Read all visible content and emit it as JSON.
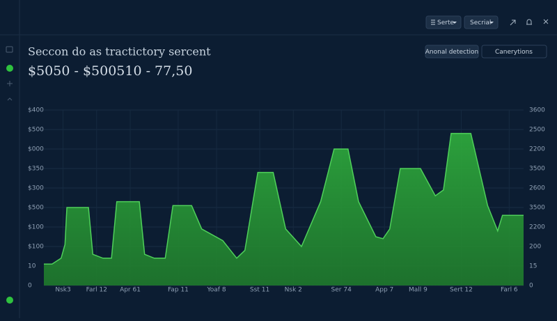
{
  "toolbar": {
    "series_button": "Serte",
    "period_button": "Secrial"
  },
  "header": {
    "title": "Seccon do as tractictory sercent",
    "subtitle": "$5050 - $500510 - 77,50",
    "buttons": [
      "Anonal detection",
      "Canerytions"
    ]
  },
  "chart_data": {
    "type": "area",
    "color": "#2f9e3a",
    "line_color": "#4fd05a",
    "grid": true,
    "xlim": [
      0,
      100
    ],
    "xticks": [
      {
        "value": 4,
        "label": "Nsk3"
      },
      {
        "value": 11,
        "label": "Farl 12"
      },
      {
        "value": 18,
        "label": "Apr 61"
      },
      {
        "value": 28,
        "label": "Fap 11"
      },
      {
        "value": 36,
        "label": "Yoaf 8"
      },
      {
        "value": 45,
        "label": "Sst 11"
      },
      {
        "value": 52,
        "label": "Nsk 2"
      },
      {
        "value": 62,
        "label": "Ser 74"
      },
      {
        "value": 71,
        "label": "App 7"
      },
      {
        "value": 78,
        "label": "Mall 9"
      },
      {
        "value": 87,
        "label": "Sert 12"
      },
      {
        "value": 97,
        "label": "Farl 6"
      }
    ],
    "ylim": [
      0,
      9
    ],
    "yticks": [
      {
        "value": 0,
        "label": "0"
      },
      {
        "value": 1,
        "label": "10"
      },
      {
        "value": 2,
        "label": "$100"
      },
      {
        "value": 3,
        "label": "$100"
      },
      {
        "value": 4,
        "label": "$500"
      },
      {
        "value": 5,
        "label": "$300"
      },
      {
        "value": 6,
        "label": "$350"
      },
      {
        "value": 7,
        "label": "$000"
      },
      {
        "value": 8,
        "label": "$500"
      },
      {
        "value": 9,
        "label": "$400"
      }
    ],
    "y2lim": [
      0,
      9
    ],
    "y2ticks": [
      {
        "value": 0,
        "label": "0"
      },
      {
        "value": 1,
        "label": "15"
      },
      {
        "value": 2,
        "label": "200"
      },
      {
        "value": 3,
        "label": "2200"
      },
      {
        "value": 4,
        "label": "3500"
      },
      {
        "value": 5,
        "label": "2600"
      },
      {
        "value": 6,
        "label": "3500"
      },
      {
        "value": 7,
        "label": "2200"
      },
      {
        "value": 8,
        "label": "2500"
      },
      {
        "value": 9,
        "label": "3600"
      }
    ],
    "x": [
      0,
      1.7,
      3.6,
      4.4,
      4.8,
      9.3,
      10.2,
      12.3,
      14.1,
      15.2,
      19.9,
      21,
      23,
      25.3,
      26.9,
      30.8,
      32.9,
      37.3,
      40.2,
      41.9,
      44.6,
      47.8,
      50.4,
      53.7,
      57.7,
      60.5,
      63.4,
      65.6,
      69.2,
      70.7,
      72.1,
      74.3,
      78.5,
      81.6,
      83.3,
      84.9,
      89,
      92.5,
      94.6,
      95.6,
      100
    ],
    "values": [
      1.1,
      1.1,
      1.4,
      2.1,
      4,
      4,
      1.6,
      1.4,
      1.4,
      4.3,
      4.3,
      1.6,
      1.4,
      1.4,
      4.1,
      4.1,
      2.9,
      2.3,
      1.4,
      1.8,
      5.8,
      5.8,
      2.9,
      2,
      4.3,
      7,
      7,
      4.3,
      2.5,
      2.4,
      2.9,
      6,
      6,
      4.6,
      4.9,
      7.8,
      7.8,
      4.1,
      2.8,
      3.6,
      3.6
    ]
  }
}
